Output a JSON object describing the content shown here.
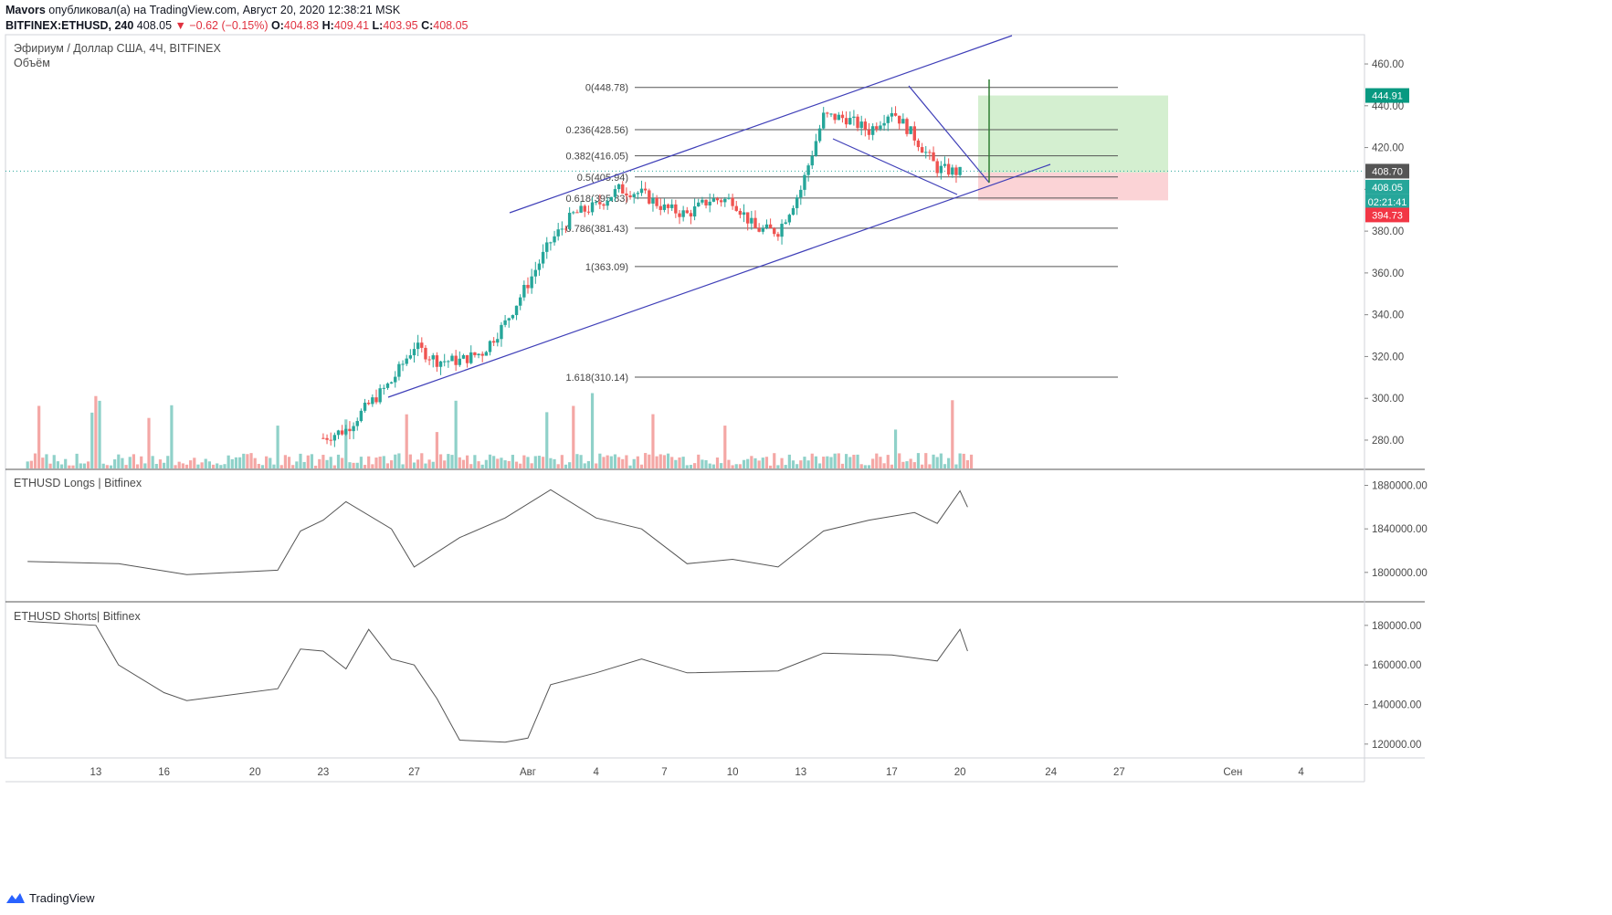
{
  "header": {
    "line1_user": "Mavors",
    "line1_rest": "опубликовал(а) на TradingView.com, Август 20, 2020 12:38:21 MSK",
    "symbol": "BITFINEX:ETHUSD, 240",
    "last": "408.05",
    "change": "▼ −0.62 (−0.15%)",
    "o_label": "O:",
    "o_val": "404.83",
    "h_label": "H:",
    "h_val": "409.41",
    "l_label": "L:",
    "l_val": "403.95",
    "c_label": "C:",
    "c_val": "408.05"
  },
  "main_pane": {
    "title": "Эфириум / Доллар США, 4Ч, BITFINEX",
    "subtitle": "Объём"
  },
  "longs_pane": {
    "title": "ETHUSD Longs | Bitfinex"
  },
  "shorts_pane": {
    "title": "ETHUSD Shorts| Bitfinex"
  },
  "footer": {
    "brand": "TradingView"
  },
  "colors": {
    "up": "#26a69a",
    "down": "#ef5350",
    "vol_up": "#8fd1c9",
    "vol_down": "#f4a7a5",
    "trendline": "#3f3fb8",
    "fib": "#555555",
    "target_zone": "#d4efd0",
    "stop_zone": "#fbd3d6",
    "target_tag": "#089981",
    "stop_tag": "#f23645",
    "price_tag": "#26a69a",
    "last_tag": "#555555"
  },
  "chart_data": [
    {
      "type": "candlestick",
      "symbol": "BITFINEX:ETHUSD",
      "timeframe": "4H",
      "x_ticks": [
        "13",
        "16",
        "20",
        "23",
        "27",
        "Авг",
        "4",
        "7",
        "10",
        "13",
        "17",
        "20",
        "24",
        "27",
        "Сен",
        "4"
      ],
      "y_ticks": [
        "460.00",
        "440.00",
        "420.00",
        "400.00",
        "380.00",
        "360.00",
        "340.00",
        "320.00",
        "300.00",
        "280.00"
      ],
      "ylim": [
        266,
        474
      ],
      "price_path": [
        {
          "date": "2020-07-23",
          "price": 281
        },
        {
          "date": "2020-07-24",
          "price": 285
        },
        {
          "date": "2020-07-25",
          "price": 297
        },
        {
          "date": "2020-07-26",
          "price": 308
        },
        {
          "date": "2020-07-27",
          "price": 325
        },
        {
          "date": "2020-07-28",
          "price": 318
        },
        {
          "date": "2020-07-29",
          "price": 318
        },
        {
          "date": "2020-07-30",
          "price": 322
        },
        {
          "date": "2020-07-31",
          "price": 336
        },
        {
          "date": "2020-08-01",
          "price": 355
        },
        {
          "date": "2020-08-02",
          "price": 375
        },
        {
          "date": "2020-08-03",
          "price": 388
        },
        {
          "date": "2020-08-04",
          "price": 392
        },
        {
          "date": "2020-08-05",
          "price": 400
        },
        {
          "date": "2020-08-06",
          "price": 398
        },
        {
          "date": "2020-08-07",
          "price": 391
        },
        {
          "date": "2020-08-08",
          "price": 388
        },
        {
          "date": "2020-08-09",
          "price": 395
        },
        {
          "date": "2020-08-10",
          "price": 395
        },
        {
          "date": "2020-08-11",
          "price": 381
        },
        {
          "date": "2020-08-12",
          "price": 380
        },
        {
          "date": "2020-08-13",
          "price": 400
        },
        {
          "date": "2020-08-14",
          "price": 435
        },
        {
          "date": "2020-08-15",
          "price": 434
        },
        {
          "date": "2020-08-16",
          "price": 428
        },
        {
          "date": "2020-08-17",
          "price": 438
        },
        {
          "date": "2020-08-18",
          "price": 425
        },
        {
          "date": "2020-08-19",
          "price": 410
        },
        {
          "date": "2020-08-20",
          "price": 408
        }
      ],
      "last_ohlc": {
        "open": 404.83,
        "high": 409.41,
        "low": 403.95,
        "close": 408.05
      },
      "fibonacci": [
        {
          "level": "0",
          "price": 448.78,
          "label": "0(448.78)"
        },
        {
          "level": "0.236",
          "price": 428.56,
          "label": "0.236(428.56)"
        },
        {
          "level": "0.382",
          "price": 416.05,
          "label": "0.382(416.05)"
        },
        {
          "level": "0.5",
          "price": 405.94,
          "label": "0.5(405.94)"
        },
        {
          "level": "0.618",
          "price": 395.83,
          "label": "0.618(395.83)"
        },
        {
          "level": "0.786",
          "price": 381.43,
          "label": "0.786(381.43)"
        },
        {
          "level": "1",
          "price": 363.09,
          "label": "1(363.09)"
        },
        {
          "level": "1.618",
          "price": 310.14,
          "label": "1.618(310.14)"
        }
      ],
      "price_tags": {
        "target": "444.91",
        "last": "408.70",
        "current": "408.05",
        "countdown": "02:21:41",
        "stop": "394.73"
      },
      "position": {
        "entry": 408.05,
        "target": 444.91,
        "stop": 394.73
      },
      "volume_pane": true
    },
    {
      "type": "line",
      "name": "ETHUSD Longs | Bitfinex",
      "y_ticks": [
        "1880000.00",
        "1840000.00",
        "1800000.00"
      ],
      "ylim": [
        1773000,
        1893000
      ],
      "values": [
        {
          "date": "2020-07-10",
          "value": 1810000
        },
        {
          "date": "2020-07-14",
          "value": 1808000
        },
        {
          "date": "2020-07-17",
          "value": 1798000
        },
        {
          "date": "2020-07-21",
          "value": 1802000
        },
        {
          "date": "2020-07-22",
          "value": 1838000
        },
        {
          "date": "2020-07-23",
          "value": 1848000
        },
        {
          "date": "2020-07-24",
          "value": 1865000
        },
        {
          "date": "2020-07-26",
          "value": 1840000
        },
        {
          "date": "2020-07-27",
          "value": 1805000
        },
        {
          "date": "2020-07-29",
          "value": 1832000
        },
        {
          "date": "2020-07-31",
          "value": 1850000
        },
        {
          "date": "2020-08-02",
          "value": 1876000
        },
        {
          "date": "2020-08-04",
          "value": 1850000
        },
        {
          "date": "2020-08-06",
          "value": 1840000
        },
        {
          "date": "2020-08-08",
          "value": 1808000
        },
        {
          "date": "2020-08-10",
          "value": 1812000
        },
        {
          "date": "2020-08-12",
          "value": 1805000
        },
        {
          "date": "2020-08-14",
          "value": 1838000
        },
        {
          "date": "2020-08-16",
          "value": 1848000
        },
        {
          "date": "2020-08-18",
          "value": 1855000
        },
        {
          "date": "2020-08-19",
          "value": 1845000
        },
        {
          "date": "2020-08-20",
          "value": 1875000
        },
        {
          "date": "2020-08-20T08",
          "value": 1860000
        }
      ]
    },
    {
      "type": "line",
      "name": "ETHUSD Shorts| Bitfinex",
      "y_ticks": [
        "180000.00",
        "160000.00",
        "140000.00",
        "120000.00"
      ],
      "ylim": [
        113000,
        191000
      ],
      "values": [
        {
          "date": "2020-07-10",
          "value": 182000
        },
        {
          "date": "2020-07-13",
          "value": 180000
        },
        {
          "date": "2020-07-14",
          "value": 160000
        },
        {
          "date": "2020-07-16",
          "value": 146000
        },
        {
          "date": "2020-07-17",
          "value": 142000
        },
        {
          "date": "2020-07-21",
          "value": 148000
        },
        {
          "date": "2020-07-22",
          "value": 168000
        },
        {
          "date": "2020-07-23",
          "value": 167000
        },
        {
          "date": "2020-07-24",
          "value": 158000
        },
        {
          "date": "2020-07-25",
          "value": 178000
        },
        {
          "date": "2020-07-26",
          "value": 163000
        },
        {
          "date": "2020-07-27",
          "value": 160000
        },
        {
          "date": "2020-07-28",
          "value": 143000
        },
        {
          "date": "2020-07-29",
          "value": 122000
        },
        {
          "date": "2020-07-31",
          "value": 121000
        },
        {
          "date": "2020-08-01",
          "value": 123000
        },
        {
          "date": "2020-08-02",
          "value": 150000
        },
        {
          "date": "2020-08-04",
          "value": 156000
        },
        {
          "date": "2020-08-06",
          "value": 163000
        },
        {
          "date": "2020-08-08",
          "value": 156000
        },
        {
          "date": "2020-08-12",
          "value": 157000
        },
        {
          "date": "2020-08-14",
          "value": 166000
        },
        {
          "date": "2020-08-17",
          "value": 165000
        },
        {
          "date": "2020-08-19",
          "value": 162000
        },
        {
          "date": "2020-08-20",
          "value": 178000
        },
        {
          "date": "2020-08-20T08",
          "value": 167000
        }
      ]
    }
  ]
}
